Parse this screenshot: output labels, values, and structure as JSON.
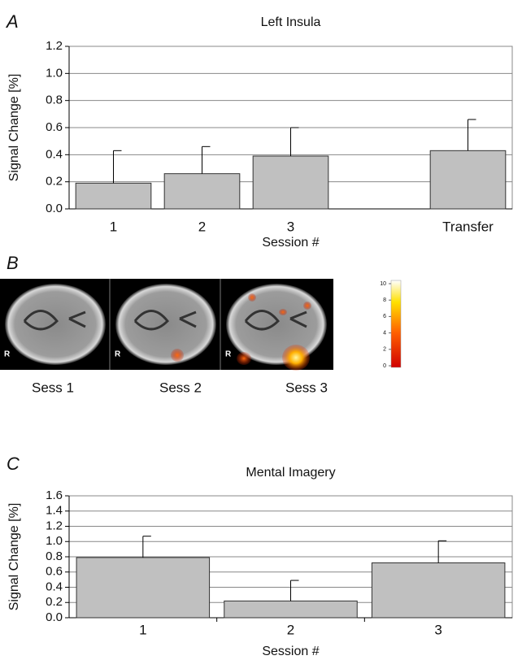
{
  "panel_labels": [
    "A",
    "B",
    "C"
  ],
  "chart_data": [
    {
      "type": "bar",
      "title": "Left Insula",
      "ylabel": "Signal Change [%]",
      "xlabel": "Session #",
      "categories": [
        "1",
        "2",
        "3",
        null,
        "Transfer"
      ],
      "values": [
        0.19,
        0.26,
        0.39,
        null,
        0.43
      ],
      "errors": [
        0.24,
        0.2,
        0.21,
        null,
        0.23
      ],
      "color": "#c0c0c0",
      "ylim": [
        0,
        1.2
      ],
      "yticks": [
        {
          "value": 0,
          "label": "0.0"
        },
        0.2,
        0.4,
        0.6,
        0.8,
        {
          "value": 1,
          "label": "1.0"
        },
        1.2
      ],
      "grid": true
    },
    {
      "type": "bar",
      "title": "Mental Imagery",
      "ylabel": "Signal Change [%]",
      "xlabel": "Session #",
      "categories": [
        "1",
        "2",
        "3"
      ],
      "values": [
        0.79,
        0.22,
        0.72
      ],
      "errors": [
        0.28,
        0.27,
        0.29
      ],
      "color": "#c0c0c0",
      "ylim": [
        0,
        1.6
      ],
      "yticks": [
        {
          "value": 0,
          "label": "0.0"
        },
        0.2,
        0.4,
        0.6,
        0.8,
        {
          "value": 1,
          "label": "1.0"
        },
        1.2,
        1.4,
        1.6
      ],
      "grid": true
    }
  ],
  "brain_maps": {
    "labels": [
      "Sess 1",
      "Sess 2",
      "Sess 3"
    ],
    "orientation": "R",
    "colorbar": {
      "ticks": [
        0,
        2,
        4,
        6,
        8,
        10
      ]
    }
  }
}
